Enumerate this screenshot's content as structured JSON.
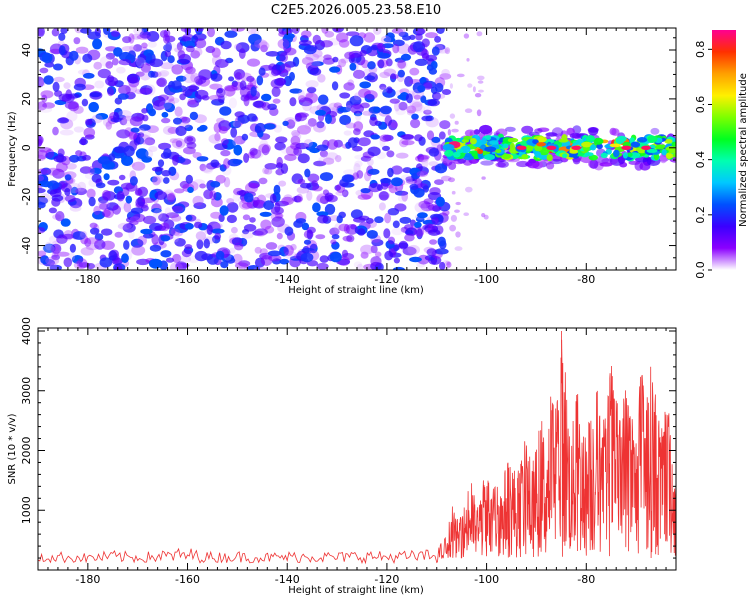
{
  "title": "C2E5.2026.005.23.58.E10",
  "chart_data": [
    {
      "type": "heatmap",
      "xlabel": "Height of straight line (km)",
      "ylabel": "Frequency (Hz)",
      "xlim": [
        -190,
        -62
      ],
      "ylim": [
        -50,
        49
      ],
      "xticks": [
        -180,
        -160,
        -140,
        -120,
        -100,
        -80
      ],
      "yticks": [
        -40,
        -20,
        0,
        20,
        40
      ],
      "regions": [
        {
          "name": "noise",
          "x_range": [
            -190,
            -108
          ],
          "y_range": [
            -50,
            49
          ],
          "max_amplitude": 0.25
        },
        {
          "name": "signal-band",
          "x_range": [
            -108,
            -62
          ],
          "frequency_center": 0,
          "frequency_halfwidth": 6,
          "max_amplitude": 0.85
        }
      ],
      "colorbar": {
        "label": "Normalized spectral amplitude",
        "range": [
          0,
          0.87
        ],
        "ticks": [
          0,
          0.2,
          0.4,
          0.6,
          0.8
        ],
        "tick_labels": [
          "0.0",
          "0.2",
          "0.4",
          "0.6",
          "0.8"
        ],
        "colormap": [
          "#ffffff",
          "#8b00ff",
          "#3a00ff",
          "#0050ff",
          "#00c8ff",
          "#00ffb0",
          "#00ff20",
          "#7dff00",
          "#fff000",
          "#ffa000",
          "#ff3000",
          "#ff0090"
        ]
      }
    },
    {
      "type": "line",
      "xlabel": "Height of straight line (km)",
      "ylabel": "SNR (10 * v/v)",
      "xlim": [
        -190,
        -62
      ],
      "ylim": [
        0,
        4050
      ],
      "xticks": [
        -180,
        -160,
        -140,
        -120,
        -100,
        -80
      ],
      "yticks": [
        1000,
        2000,
        3000,
        4000
      ],
      "color": "#ee3333",
      "series": [
        {
          "name": "SNR",
          "x": [
            -190,
            -185,
            -180,
            -175,
            -170,
            -165,
            -160,
            -155,
            -150,
            -145,
            -140,
            -135,
            -130,
            -125,
            -120,
            -115,
            -110,
            -108,
            -107,
            -106,
            -105,
            -104,
            -103,
            -102,
            -101,
            -100,
            -99,
            -98,
            -97,
            -96,
            -95,
            -94,
            -93,
            -92,
            -91,
            -90,
            -89,
            -88,
            -87,
            -86,
            -85,
            -84,
            -83,
            -82,
            -81,
            -80,
            -79,
            -78,
            -77,
            -76,
            -75,
            -74,
            -73,
            -72,
            -71,
            -70,
            -69,
            -68,
            -67,
            -66,
            -65,
            -64,
            -63,
            -62
          ],
          "values": [
            210,
            260,
            230,
            280,
            240,
            290,
            330,
            250,
            270,
            240,
            260,
            280,
            250,
            290,
            260,
            280,
            300,
            550,
            1100,
            850,
            900,
            1300,
            1500,
            1050,
            1400,
            1800,
            1250,
            1600,
            1400,
            1850,
            2000,
            1550,
            1900,
            2300,
            1750,
            2100,
            2600,
            2150,
            3200,
            2700,
            4000,
            3400,
            2200,
            3100,
            2600,
            2250,
            2900,
            3300,
            2400,
            2700,
            3600,
            2900,
            2500,
            3300,
            2700,
            2400,
            3450,
            2900,
            3500,
            3000,
            2300,
            2900,
            2500,
            1500
          ]
        }
      ]
    }
  ]
}
